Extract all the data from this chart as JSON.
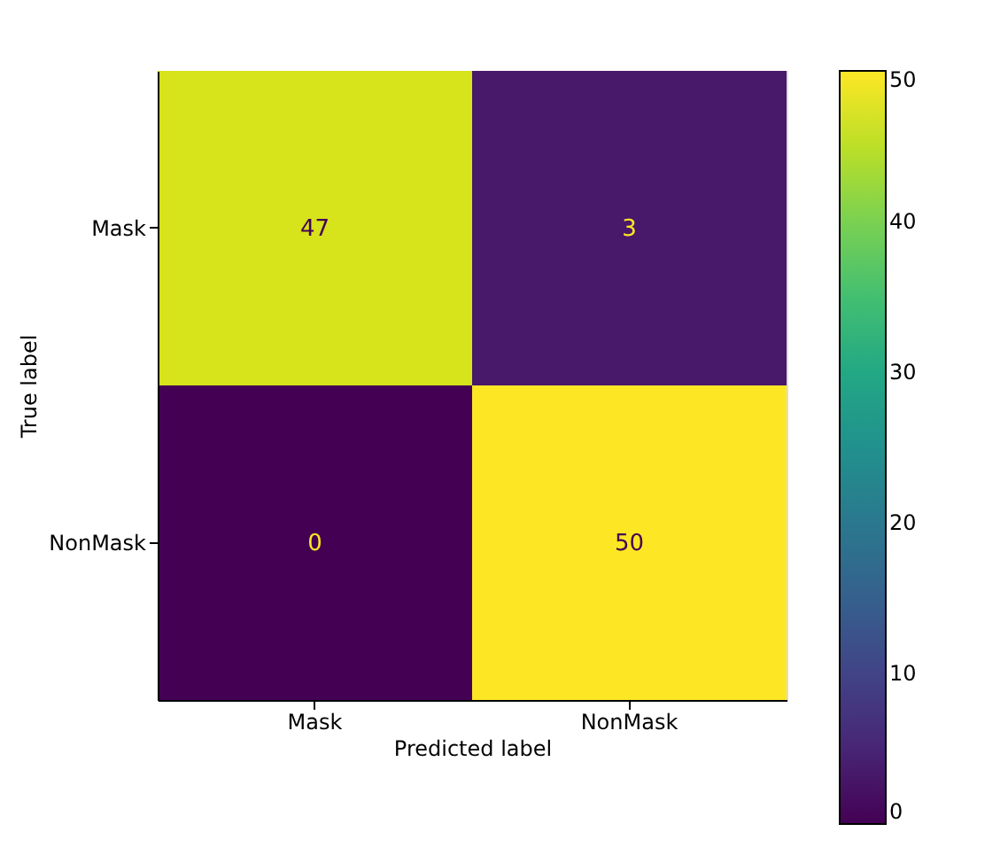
{
  "chart_data": {
    "type": "heatmap",
    "xlabel": "Predicted label",
    "ylabel": "True label",
    "categories": [
      "Mask",
      "NonMask"
    ],
    "y_categories": [
      "Mask",
      "NonMask"
    ],
    "cells": [
      [
        47,
        3
      ],
      [
        0,
        50
      ]
    ],
    "clim": [
      0,
      50
    ],
    "cticks": [
      0,
      10,
      20,
      30,
      40,
      50
    ],
    "data_labels": true,
    "grid": false
  }
}
